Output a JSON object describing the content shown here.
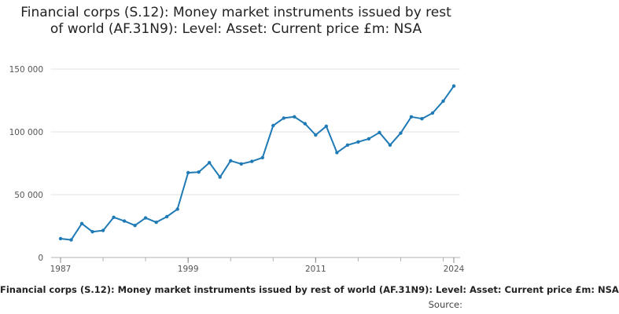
{
  "chart_data": {
    "type": "line",
    "title": "Financial corps (S.12): Money market instruments issued by rest of world (AF.31N9): Level: Asset: Current price £m: NSA",
    "xlabel": "",
    "ylabel": "",
    "ylim": [
      0,
      150000
    ],
    "xlim": [
      1987,
      2024
    ],
    "yticks": [
      0,
      50000,
      100000,
      150000
    ],
    "ytick_labels": [
      "0",
      "50 000",
      "100 000",
      "150 000"
    ],
    "xticks": [
      1987,
      1999,
      2011,
      2024
    ],
    "xtick_labels": [
      "1987",
      "1999",
      "2011",
      "2024"
    ],
    "grid": true,
    "legend": "bottom",
    "series": [
      {
        "name": "Financial corps (S.12): Money market instruments issued by rest of world (AF.31N9): Level: Asset: Current price £m: NSA",
        "color": "#1f7ab5",
        "x": [
          1987,
          1988,
          1989,
          1990,
          1991,
          1992,
          1993,
          1994,
          1995,
          1996,
          1997,
          1998,
          1999,
          2000,
          2001,
          2002,
          2003,
          2004,
          2005,
          2006,
          2007,
          2008,
          2009,
          2010,
          2011,
          2012,
          2013,
          2014,
          2015,
          2016,
          2017,
          2018,
          2019,
          2020,
          2021,
          2022,
          2023,
          2024
        ],
        "values": [
          15000,
          14000,
          27000,
          20500,
          21500,
          32000,
          29000,
          25500,
          31500,
          28000,
          32500,
          38500,
          67500,
          68000,
          75500,
          64000,
          77000,
          74500,
          76500,
          79500,
          105000,
          111000,
          112000,
          106500,
          97500,
          104500,
          83500,
          89500,
          92000,
          94500,
          99500,
          89500,
          99000,
          112000,
          110500,
          115000,
          124500,
          136500
        ]
      }
    ]
  },
  "footer": {
    "legend_text": "Financial corps (S.12): Money market instruments issued by rest of world (AF.31N9): Level: Asset: Current price £m: NSA",
    "source_label": "Source:"
  }
}
